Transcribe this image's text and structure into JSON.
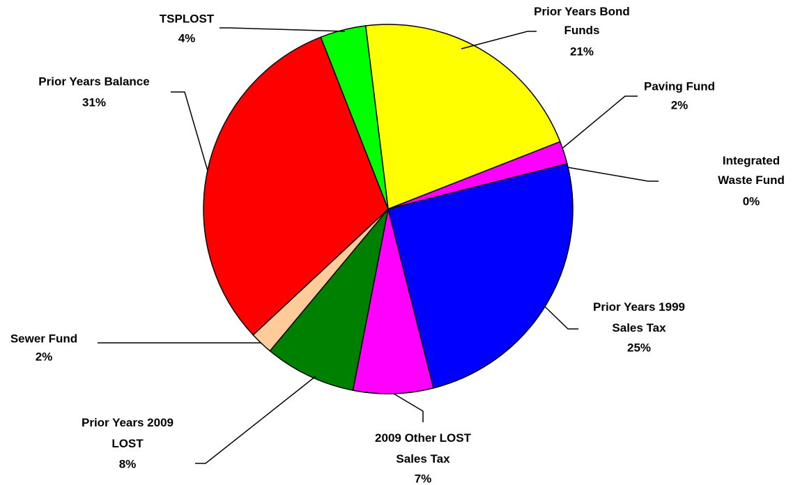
{
  "chart_data": {
    "type": "pie",
    "categories": [
      "Prior Years Bond Funds",
      "Paving Fund",
      "Integrated Waste Fund",
      "Prior Years 1999 Sales Tax",
      "2009 Other LOST Sales Tax",
      "Prior Years 2009 LOST",
      "Sewer Fund",
      "Prior Years Balance",
      "TSPLOST"
    ],
    "values": [
      21,
      2,
      0,
      25,
      7,
      8,
      2,
      31,
      4
    ],
    "value_labels": [
      "21%",
      "2%",
      "0%",
      "25%",
      "7%",
      "8%",
      "2%",
      "31%",
      "4%"
    ],
    "colors": [
      "#ffff00",
      "#ff00ff",
      "#ff00ff",
      "#0000ff",
      "#ff00ff",
      "#008000",
      "#ffcc99",
      "#ff0000",
      "#00ff00"
    ]
  }
}
